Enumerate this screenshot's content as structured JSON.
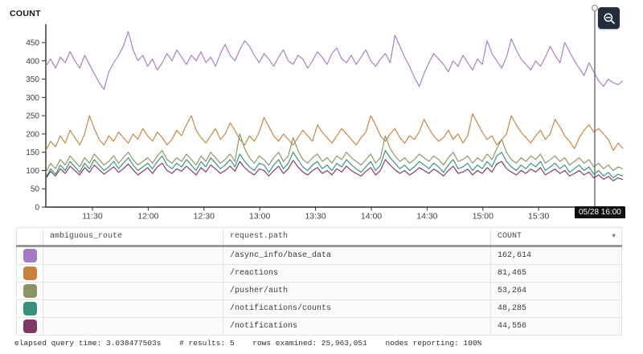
{
  "chart_data": {
    "type": "line",
    "title": "",
    "ylabel": "COUNT",
    "xlabel": "",
    "ylim": [
      0,
      500
    ],
    "grid": false,
    "legend_position": "table-below",
    "y_ticks": [
      0,
      50,
      100,
      150,
      200,
      250,
      300,
      350,
      400,
      450
    ],
    "x_ticks": [
      "11:30",
      "12:00",
      "12:30",
      "13:00",
      "13:30",
      "14:00",
      "14:30",
      "15:00",
      "15:30"
    ],
    "crosshair_label": "05/28 16:00",
    "series": [
      {
        "name": "/async_info/base_data",
        "color": "#a77bc4",
        "values": [
          385,
          405,
          380,
          410,
          395,
          425,
          400,
          380,
          415,
          390,
          365,
          340,
          322,
          370,
          395,
          415,
          440,
          480,
          430,
          400,
          415,
          385,
          405,
          375,
          395,
          420,
          400,
          430,
          410,
          390,
          415,
          400,
          425,
          395,
          410,
          385,
          420,
          445,
          415,
          400,
          430,
          455,
          440,
          415,
          395,
          420,
          405,
          385,
          410,
          430,
          400,
          390,
          415,
          405,
          380,
          400,
          425,
          410,
          390,
          420,
          435,
          405,
          395,
          415,
          390,
          410,
          430,
          400,
          385,
          405,
          420,
          395,
          470,
          440,
          410,
          385,
          355,
          330,
          365,
          395,
          420,
          405,
          390,
          370,
          400,
          385,
          415,
          395,
          375,
          405,
          390,
          455,
          420,
          400,
          380,
          410,
          460,
          430,
          405,
          390,
          375,
          400,
          385,
          410,
          440,
          415,
          395,
          450,
          425,
          400,
          380,
          360,
          395,
          370,
          345,
          330,
          350,
          340,
          335,
          345
        ]
      },
      {
        "name": "/reactions",
        "color": "#c9813f",
        "values": [
          155,
          180,
          165,
          195,
          175,
          210,
          190,
          170,
          200,
          250,
          215,
          185,
          170,
          195,
          180,
          205,
          190,
          175,
          200,
          185,
          215,
          195,
          180,
          205,
          190,
          170,
          185,
          210,
          195,
          225,
          250,
          210,
          190,
          175,
          195,
          215,
          185,
          200,
          230,
          210,
          185,
          170,
          195,
          180,
          205,
          245,
          220,
          195,
          180,
          200,
          185,
          170,
          190,
          210,
          195,
          180,
          225,
          205,
          190,
          175,
          195,
          215,
          200,
          185,
          170,
          190,
          205,
          250,
          225,
          195,
          180,
          200,
          215,
          190,
          175,
          195,
          185,
          205,
          240,
          215,
          195,
          180,
          190,
          210,
          185,
          200,
          175,
          195,
          255,
          230,
          205,
          185,
          195,
          170,
          185,
          200,
          250,
          225,
          205,
          190,
          175,
          195,
          210,
          185,
          200,
          240,
          220,
          195,
          180,
          160,
          190,
          210,
          225,
          205,
          215,
          200,
          185,
          155,
          175,
          160
        ]
      },
      {
        "name": "/pusher/auth",
        "color": "#8d9365",
        "values": [
          95,
          120,
          105,
          130,
          115,
          140,
          125,
          110,
          135,
          120,
          145,
          130,
          115,
          125,
          140,
          120,
          135,
          150,
          130,
          115,
          125,
          135,
          120,
          140,
          155,
          130,
          120,
          135,
          125,
          145,
          130,
          115,
          140,
          125,
          150,
          135,
          120,
          130,
          145,
          125,
          200,
          160,
          135,
          120,
          140,
          130,
          115,
          135,
          150,
          125,
          140,
          190,
          155,
          130,
          120,
          135,
          145,
          125,
          135,
          120,
          140,
          130,
          150,
          135,
          125,
          115,
          130,
          145,
          120,
          135,
          195,
          160,
          140,
          125,
          135,
          120,
          130,
          145,
          135,
          125,
          140,
          130,
          115,
          135,
          150,
          125,
          130,
          140,
          120,
          135,
          125,
          145,
          130,
          160,
          185,
          150,
          130,
          120,
          135,
          125,
          140,
          130,
          145,
          120,
          130,
          140,
          125,
          135,
          115,
          125,
          135,
          120,
          130,
          110,
          120,
          105,
          115,
          100,
          110,
          105
        ]
      },
      {
        "name": "/notifications/counts",
        "color": "#35907e",
        "values": [
          80,
          105,
          90,
          115,
          100,
          125,
          110,
          95,
          120,
          105,
          130,
          115,
          100,
          110,
          125,
          105,
          120,
          135,
          115,
          100,
          110,
          120,
          105,
          125,
          140,
          115,
          105,
          120,
          110,
          130,
          115,
          100,
          125,
          110,
          135,
          120,
          105,
          115,
          130,
          110,
          145,
          125,
          110,
          100,
          120,
          115,
          95,
          115,
          130,
          105,
          120,
          150,
          130,
          110,
          100,
          115,
          125,
          105,
          115,
          100,
          120,
          110,
          130,
          115,
          105,
          95,
          110,
          125,
          100,
          115,
          155,
          135,
          120,
          105,
          115,
          100,
          110,
          125,
          115,
          105,
          120,
          110,
          95,
          115,
          130,
          105,
          110,
          120,
          100,
          115,
          105,
          125,
          110,
          140,
          150,
          125,
          110,
          100,
          115,
          105,
          120,
          110,
          125,
          100,
          110,
          120,
          105,
          115,
          95,
          105,
          115,
          100,
          110,
          90,
          100,
          85,
          95,
          80,
          90,
          85
        ]
      },
      {
        "name": "/notifications",
        "color": "#7e3a62",
        "values": [
          78,
          98,
          85,
          105,
          92,
          112,
          100,
          88,
          108,
          95,
          115,
          102,
          90,
          100,
          110,
          95,
          105,
          118,
          102,
          88,
          98,
          108,
          92,
          110,
          120,
          100,
          92,
          105,
          98,
          112,
          100,
          88,
          108,
          96,
          115,
          104,
          92,
          100,
          112,
          98,
          125,
          108,
          96,
          88,
          104,
          100,
          85,
          100,
          112,
          92,
          105,
          128,
          110,
          96,
          88,
          100,
          108,
          92,
          100,
          88,
          105,
          96,
          112,
          100,
          92,
          85,
          98,
          108,
          88,
          100,
          130,
          115,
          102,
          92,
          100,
          88,
          96,
          108,
          100,
          92,
          104,
          96,
          85,
          100,
          112,
          92,
          96,
          104,
          88,
          100,
          92,
          108,
          96,
          118,
          125,
          105,
          96,
          88,
          100,
          92,
          104,
          96,
          108,
          88,
          96,
          104,
          92,
          100,
          85,
          92,
          100,
          88,
          96,
          80,
          88,
          76,
          84,
          72,
          80,
          75
        ]
      }
    ]
  },
  "toolbar": {
    "zoom_out_icon": "magnifier-minus"
  },
  "table": {
    "headers": [
      "",
      "ambiguous_route",
      "request.path",
      "COUNT"
    ],
    "sort_icon": "▼",
    "rows": [
      {
        "color": "#a77bc4",
        "ambiguous_route": "",
        "path": "/async_info/base_data",
        "count": "162,614"
      },
      {
        "color": "#c9813f",
        "ambiguous_route": "",
        "path": "/reactions",
        "count": "81,465"
      },
      {
        "color": "#8d9365",
        "ambiguous_route": "",
        "path": "/pusher/auth",
        "count": "53,264"
      },
      {
        "color": "#35907e",
        "ambiguous_route": "",
        "path": "/notifications/counts",
        "count": "48,285"
      },
      {
        "color": "#7e3a62",
        "ambiguous_route": "",
        "path": "/notifications",
        "count": "44,556"
      }
    ]
  },
  "footer": {
    "items": [
      "elapsed query time: 3.038477503s",
      "# results: 5",
      "rows examined: 25,963,051",
      "nodes reporting: 100%"
    ]
  }
}
